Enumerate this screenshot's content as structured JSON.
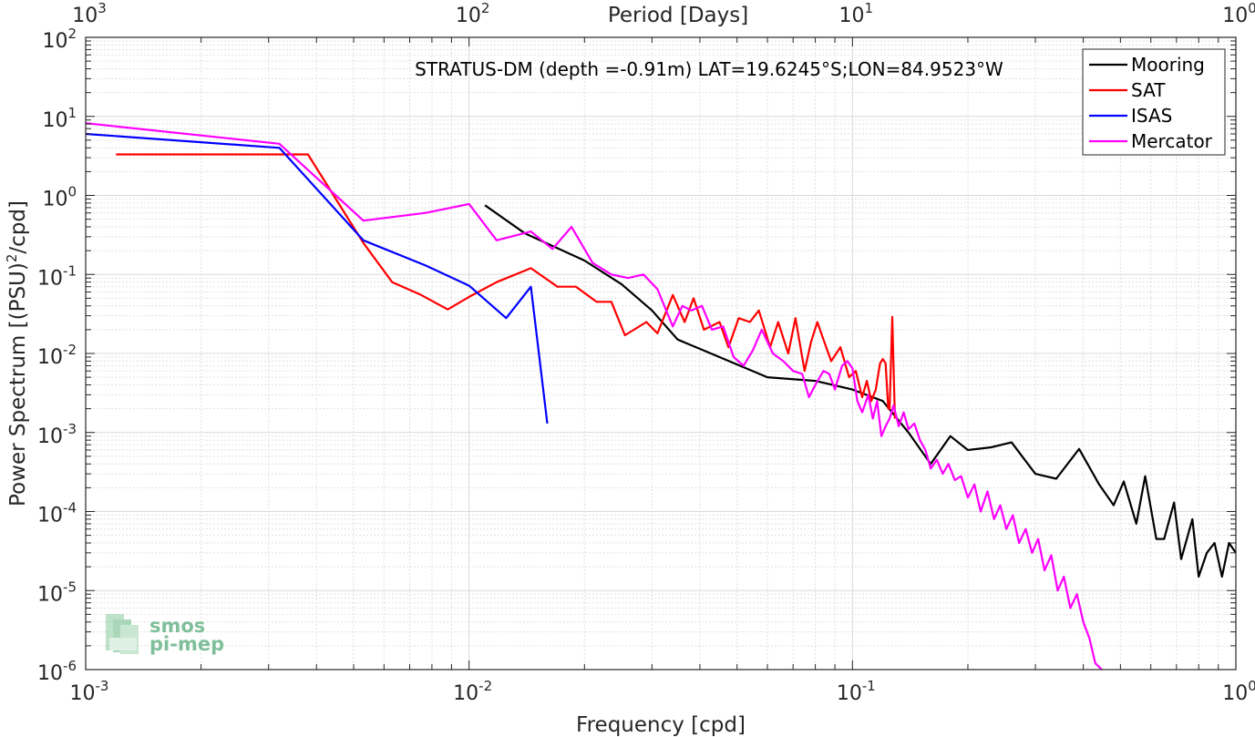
{
  "chart_data": {
    "type": "line",
    "title": "STRATUS-DM (depth =-0.91m) LAT=19.6245°S;LON=84.9523°W",
    "xlabel": "Frequency [cpd]",
    "ylabel_parts": [
      "Power Spectrum [(PSU)",
      "2",
      "/cpd]"
    ],
    "top_xlabel": "Period [Days]",
    "xscale": "log",
    "yscale": "log",
    "xlim": [
      0.001,
      1
    ],
    "ylim": [
      1e-06,
      100
    ],
    "grid": true,
    "legend_position": "top-right",
    "x_tick_labels": [
      {
        "base": "10",
        "exp": "-3"
      },
      {
        "base": "10",
        "exp": "-2"
      },
      {
        "base": "10",
        "exp": "-1"
      },
      {
        "base": "10",
        "exp": "0"
      }
    ],
    "top_tick_labels": [
      {
        "base": "10",
        "exp": "3"
      },
      {
        "base": "10",
        "exp": "2"
      },
      {
        "base": "10",
        "exp": "1"
      },
      {
        "base": "10",
        "exp": "0"
      }
    ],
    "y_tick_labels": [
      {
        "base": "10",
        "exp": "2"
      },
      {
        "base": "10",
        "exp": "1"
      },
      {
        "base": "10",
        "exp": "0"
      },
      {
        "base": "10",
        "exp": "-1"
      },
      {
        "base": "10",
        "exp": "-2"
      },
      {
        "base": "10",
        "exp": "-3"
      },
      {
        "base": "10",
        "exp": "-4"
      },
      {
        "base": "10",
        "exp": "-5"
      },
      {
        "base": "10",
        "exp": "-6"
      }
    ],
    "series": [
      {
        "name": "Mooring",
        "color": "#000000",
        "points": [
          [
            0.011,
            0.75
          ],
          [
            0.014,
            0.33
          ],
          [
            0.02,
            0.15
          ],
          [
            0.025,
            0.075
          ],
          [
            0.03,
            0.035
          ],
          [
            0.035,
            0.015
          ],
          [
            0.045,
            0.009
          ],
          [
            0.06,
            0.005
          ],
          [
            0.08,
            0.0045
          ],
          [
            0.1,
            0.0035
          ],
          [
            0.12,
            0.0025
          ],
          [
            0.14,
            0.001
          ],
          [
            0.16,
            0.0004
          ],
          [
            0.18,
            0.0009
          ],
          [
            0.2,
            0.0006
          ],
          [
            0.23,
            0.00065
          ],
          [
            0.26,
            0.00075
          ],
          [
            0.3,
            0.0003
          ],
          [
            0.34,
            0.00026
          ],
          [
            0.39,
            0.00062
          ],
          [
            0.44,
            0.00022
          ],
          [
            0.48,
            0.00012
          ],
          [
            0.51,
            0.00024
          ],
          [
            0.55,
            7e-05
          ],
          [
            0.58,
            0.00028
          ],
          [
            0.62,
            4.5e-05
          ],
          [
            0.65,
            4.5e-05
          ],
          [
            0.69,
            0.00013
          ],
          [
            0.72,
            2.5e-05
          ],
          [
            0.77,
            8e-05
          ],
          [
            0.8,
            1.5e-05
          ],
          [
            0.84,
            3e-05
          ],
          [
            0.88,
            4e-05
          ],
          [
            0.92,
            1.5e-05
          ],
          [
            0.96,
            4e-05
          ],
          [
            1.0,
            3e-05
          ]
        ]
      },
      {
        "name": "SAT",
        "color": "#ff0000",
        "points": [
          [
            0.0012,
            3.3
          ],
          [
            0.0032,
            3.3
          ],
          [
            0.0038,
            3.3
          ],
          [
            0.0053,
            0.25
          ],
          [
            0.0063,
            0.08
          ],
          [
            0.0075,
            0.055
          ],
          [
            0.0088,
            0.036
          ],
          [
            0.01,
            0.052
          ],
          [
            0.0118,
            0.08
          ],
          [
            0.0145,
            0.12
          ],
          [
            0.017,
            0.07
          ],
          [
            0.019,
            0.07
          ],
          [
            0.0215,
            0.045
          ],
          [
            0.0235,
            0.045
          ],
          [
            0.0255,
            0.017
          ],
          [
            0.029,
            0.025
          ],
          [
            0.031,
            0.018
          ],
          [
            0.034,
            0.055
          ],
          [
            0.0365,
            0.025
          ],
          [
            0.0385,
            0.05
          ],
          [
            0.041,
            0.02
          ],
          [
            0.045,
            0.025
          ],
          [
            0.0475,
            0.012
          ],
          [
            0.0505,
            0.028
          ],
          [
            0.054,
            0.025
          ],
          [
            0.057,
            0.035
          ],
          [
            0.061,
            0.012
          ],
          [
            0.064,
            0.025
          ],
          [
            0.068,
            0.01
          ],
          [
            0.071,
            0.028
          ],
          [
            0.075,
            0.006
          ],
          [
            0.078,
            0.014
          ],
          [
            0.081,
            0.025
          ],
          [
            0.084,
            0.015
          ],
          [
            0.088,
            0.008
          ],
          [
            0.093,
            0.012
          ],
          [
            0.098,
            0.005
          ],
          [
            0.102,
            0.006
          ],
          [
            0.106,
            0.0028
          ],
          [
            0.109,
            0.0045
          ],
          [
            0.112,
            0.0025
          ],
          [
            0.115,
            0.0035
          ],
          [
            0.118,
            0.0075
          ],
          [
            0.12,
            0.0085
          ],
          [
            0.122,
            0.0075
          ],
          [
            0.124,
            0.002
          ],
          [
            0.125,
            0.002
          ],
          [
            0.127,
            0.029
          ],
          [
            0.129,
            0.0015
          ]
        ]
      },
      {
        "name": "ISAS",
        "color": "#0000ff",
        "points": [
          [
            0.001,
            6.0
          ],
          [
            0.0032,
            4.0
          ],
          [
            0.0053,
            0.27
          ],
          [
            0.0077,
            0.13
          ],
          [
            0.01,
            0.072
          ],
          [
            0.0125,
            0.028
          ],
          [
            0.0145,
            0.07
          ],
          [
            0.016,
            0.0013
          ]
        ]
      },
      {
        "name": "Mercator",
        "color": "#ff00ff",
        "points": [
          [
            0.001,
            8.2
          ],
          [
            0.0032,
            4.5
          ],
          [
            0.0053,
            0.48
          ],
          [
            0.0077,
            0.6
          ],
          [
            0.01,
            0.78
          ],
          [
            0.0118,
            0.27
          ],
          [
            0.0145,
            0.35
          ],
          [
            0.0165,
            0.21
          ],
          [
            0.0185,
            0.4
          ],
          [
            0.021,
            0.14
          ],
          [
            0.0235,
            0.1
          ],
          [
            0.026,
            0.09
          ],
          [
            0.0285,
            0.1
          ],
          [
            0.031,
            0.065
          ],
          [
            0.034,
            0.022
          ],
          [
            0.036,
            0.04
          ],
          [
            0.038,
            0.035
          ],
          [
            0.0405,
            0.04
          ],
          [
            0.043,
            0.02
          ],
          [
            0.046,
            0.022
          ],
          [
            0.049,
            0.009
          ],
          [
            0.052,
            0.007
          ],
          [
            0.055,
            0.011
          ],
          [
            0.058,
            0.02
          ],
          [
            0.062,
            0.01
          ],
          [
            0.066,
            0.008
          ],
          [
            0.07,
            0.006
          ],
          [
            0.074,
            0.0055
          ],
          [
            0.077,
            0.0028
          ],
          [
            0.08,
            0.004
          ],
          [
            0.084,
            0.006
          ],
          [
            0.087,
            0.0055
          ],
          [
            0.09,
            0.0035
          ],
          [
            0.094,
            0.007
          ],
          [
            0.097,
            0.008
          ],
          [
            0.1,
            0.0065
          ],
          [
            0.103,
            0.0025
          ],
          [
            0.106,
            0.0018
          ],
          [
            0.11,
            0.003
          ],
          [
            0.113,
            0.0015
          ],
          [
            0.116,
            0.0025
          ],
          [
            0.119,
            0.0009
          ],
          [
            0.122,
            0.0012
          ],
          [
            0.125,
            0.0015
          ],
          [
            0.128,
            0.0022
          ],
          [
            0.132,
            0.0012
          ],
          [
            0.136,
            0.0018
          ],
          [
            0.14,
            0.0011
          ],
          [
            0.145,
            0.0013
          ],
          [
            0.15,
            0.0008
          ],
          [
            0.155,
            0.0006
          ],
          [
            0.16,
            0.00035
          ],
          [
            0.166,
            0.00045
          ],
          [
            0.172,
            0.0003
          ],
          [
            0.178,
            0.0004
          ],
          [
            0.185,
            0.00025
          ],
          [
            0.192,
            0.00028
          ],
          [
            0.2,
            0.00015
          ],
          [
            0.208,
            0.00022
          ],
          [
            0.216,
            0.0001
          ],
          [
            0.225,
            0.00018
          ],
          [
            0.234,
            8e-05
          ],
          [
            0.243,
            0.00012
          ],
          [
            0.252,
            6e-05
          ],
          [
            0.262,
            9e-05
          ],
          [
            0.272,
            4e-05
          ],
          [
            0.283,
            6e-05
          ],
          [
            0.294,
            3e-05
          ],
          [
            0.305,
            4.5e-05
          ],
          [
            0.317,
            1.8e-05
          ],
          [
            0.33,
            2.8e-05
          ],
          [
            0.343,
            1e-05
          ],
          [
            0.356,
            1.5e-05
          ],
          [
            0.37,
            6e-06
          ],
          [
            0.385,
            9e-06
          ],
          [
            0.4,
            4e-06
          ],
          [
            0.415,
            2.5e-06
          ],
          [
            0.43,
            1.2e-06
          ],
          [
            0.447,
            1e-06
          ]
        ]
      }
    ]
  },
  "logo": {
    "line1": "smos",
    "line2": "pi-mep"
  }
}
